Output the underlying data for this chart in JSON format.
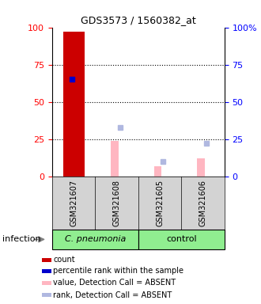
{
  "title": "GDS3573 / 1560382_at",
  "samples": [
    "GSM321607",
    "GSM321608",
    "GSM321605",
    "GSM321606"
  ],
  "count_values": [
    97,
    0,
    0,
    0
  ],
  "count_color": "#cc0000",
  "percentile_rank": [
    65,
    0,
    0,
    0
  ],
  "percentile_color": "#0000cc",
  "value_absent": [
    0,
    24,
    7,
    12
  ],
  "value_absent_color": "#ffb6c1",
  "rank_absent": [
    0,
    33,
    10,
    22
  ],
  "rank_absent_color": "#b0b8e0",
  "ylim": [
    0,
    100
  ],
  "yticks": [
    0,
    25,
    50,
    75,
    100
  ],
  "bar_width": 0.5,
  "thin_bar_width": 0.18,
  "legend_items": [
    {
      "label": "count",
      "color": "#cc0000"
    },
    {
      "label": "percentile rank within the sample",
      "color": "#0000cc"
    },
    {
      "label": "value, Detection Call = ABSENT",
      "color": "#ffb6c1"
    },
    {
      "label": "rank, Detection Call = ABSENT",
      "color": "#b0b8e0"
    }
  ],
  "bg_color": "#d3d3d3",
  "plot_bg": "#ffffff",
  "group1_label": "C. pneumonia",
  "group2_label": "control",
  "group_color": "#90ee90",
  "infection_label": "infection"
}
